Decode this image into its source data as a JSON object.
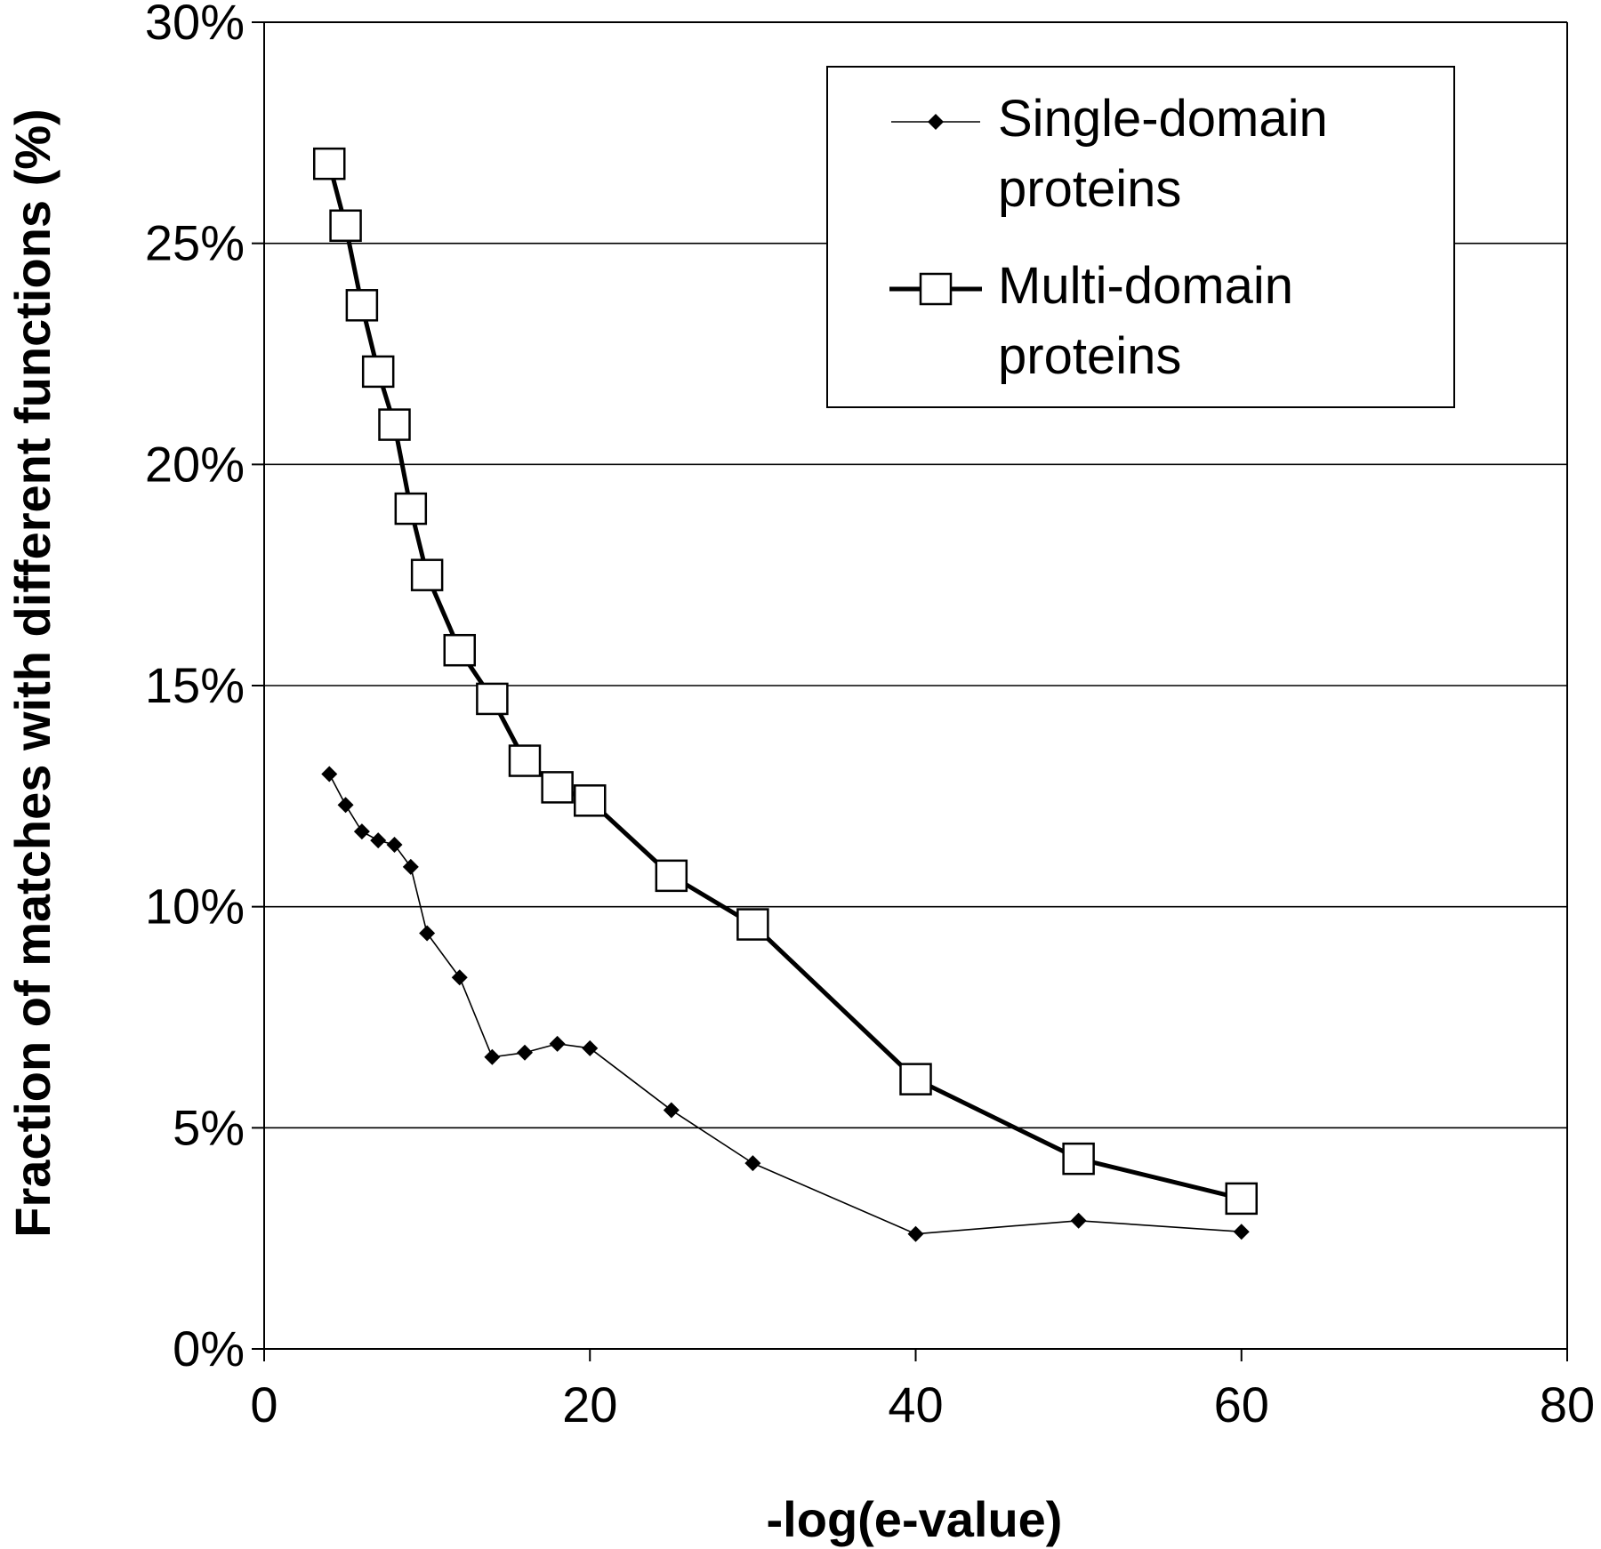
{
  "chart_data": {
    "type": "line",
    "xlabel": "-log(e-value)",
    "ylabel": "Fraction of matches with different functions (%)",
    "xlim": [
      0,
      80
    ],
    "ylim": [
      0,
      30
    ],
    "x_ticks": [
      0,
      20,
      40,
      60,
      80
    ],
    "x_tick_labels": [
      "0",
      "20",
      "40",
      "60",
      "80"
    ],
    "y_ticks": [
      0,
      5,
      10,
      15,
      20,
      25,
      30
    ],
    "y_tick_labels": [
      "0%",
      "5%",
      "10%",
      "15%",
      "20%",
      "25%",
      "30%"
    ],
    "grid": "horizontal",
    "legend_position": "top-right",
    "series": [
      {
        "name": "Single-domain proteins",
        "legend_lines": [
          "Single-domain",
          "proteins"
        ],
        "marker": "diamond",
        "color": "#000000",
        "x": [
          4,
          5,
          6,
          7,
          8,
          9,
          10,
          12,
          14,
          16,
          18,
          20,
          25,
          30,
          40,
          50,
          60
        ],
        "y": [
          13.0,
          12.3,
          11.7,
          11.5,
          11.4,
          10.9,
          9.4,
          8.4,
          6.6,
          6.7,
          6.9,
          6.8,
          5.4,
          4.2,
          2.6,
          2.9,
          2.65
        ]
      },
      {
        "name": "Multi-domain proteins",
        "legend_lines": [
          "Multi-domain",
          "proteins"
        ],
        "marker": "square",
        "color": "#000000",
        "x": [
          4,
          5,
          6,
          7,
          8,
          9,
          10,
          12,
          14,
          16,
          18,
          20,
          25,
          30,
          40,
          50,
          60
        ],
        "y": [
          26.8,
          25.4,
          23.6,
          22.1,
          20.9,
          19.0,
          17.5,
          15.8,
          14.7,
          13.3,
          12.7,
          12.4,
          10.7,
          9.6,
          6.1,
          4.3,
          3.4
        ]
      }
    ]
  }
}
